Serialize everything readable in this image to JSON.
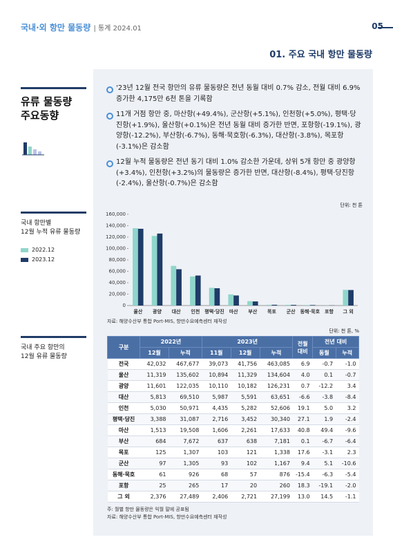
{
  "header": {
    "title": "국내·외 항만 물동량",
    "subtitle": "| 통계 2024.01",
    "page": "05"
  },
  "section_title": "01. 주요 국내 항만 물동량",
  "sidebar": {
    "topic": [
      "유류 물동량",
      "주요동향"
    ],
    "chart_label": [
      "국내 항만별",
      "12월 누적 유류 물동량"
    ],
    "table_label": [
      "국내 주요 항만의",
      "12월 유류 물동량"
    ]
  },
  "bullets": [
    "'23년 12월 전국 항만의 유류 물동량은 전년 동월 대비 0.7% 감소, 전월 대비 6.9% 증가한 4,175만 6천 톤을 기록함",
    "11개 거점 항만 중, 마산항(+49.4%), 군산항(+5.1%), 인천항(+5.0%), 평택·당진항(+1.9%), 울산항(+0.1%)은 전년 동월 대비 증가한 반면, 포항항(-19.1%), 광양항(-12.2%), 부산항(-6.7%), 동해·묵호항(-6.3%), 대산항(-3.8%), 목포항(-3.1%)은 감소함",
    "12월 누적 물동량은 전년 동기 대비 1.0% 감소한 가운데, 상위 5개 항만 중 광양항(+3.4%), 인천항(+3.2%)의 물동량은 증가한 반면, 대산항(-8.4%), 평택·당진항(-2.4%), 울산항(-0.7%)은 감소함"
  ],
  "chart_data": {
    "type": "bar",
    "unit": "단위: 천 톤",
    "categories": [
      "울산",
      "광양",
      "대산",
      "인천",
      "평택·당진",
      "마산",
      "부산",
      "목포",
      "군산",
      "동해·묵호",
      "포항",
      "그 외"
    ],
    "series": [
      {
        "name": "2022.12",
        "color": "#8fd6cb",
        "values": [
          135602,
          122035,
          69510,
          50971,
          31087,
          19508,
          7672,
          1307,
          1305,
          926,
          265,
          27489
        ]
      },
      {
        "name": "2023.12",
        "color": "#1f3c68",
        "values": [
          134604,
          126231,
          63651,
          52606,
          30340,
          17633,
          7181,
          1338,
          1167,
          876,
          260,
          27199
        ]
      }
    ],
    "ylim": [
      0,
      160000
    ],
    "yticks": [
      0,
      {
        "value": 20000,
        "label": "20,000"
      },
      {
        "value": 40000,
        "label": "40,000"
      },
      {
        "value": 60000,
        "label": "60,000"
      },
      {
        "value": 80000,
        "label": "80,000"
      },
      {
        "value": 100000,
        "label": "100,000"
      },
      {
        "value": 120000,
        "label": "120,000"
      },
      {
        "value": 140000,
        "label": "140,000"
      },
      {
        "value": 160000,
        "label": "160,000"
      }
    ],
    "source": "자료: 해양수산부 통합 Port-MIS, 항만수요예측센터 재작성"
  },
  "table": {
    "unit": "단위: 천 톤, %",
    "head": {
      "category": "구분",
      "y2022": "2022년",
      "y2023": "2023년",
      "mom": "전월 대비",
      "yoy": "전년 대비",
      "sub": [
        "12월",
        "누적",
        "11월",
        "12월",
        "누적",
        "동월",
        "누적"
      ]
    },
    "rows": [
      [
        "전국",
        "42,032",
        "467,677",
        "39,073",
        "41,756",
        "463,085",
        "6.9",
        "-0.7",
        "-1.0"
      ],
      [
        "울산",
        "11,319",
        "135,602",
        "10,894",
        "11,329",
        "134,604",
        "4.0",
        "0.1",
        "-0.7"
      ],
      [
        "광양",
        "11,601",
        "122,035",
        "10,110",
        "10,182",
        "126,231",
        "0.7",
        "-12.2",
        "3.4"
      ],
      [
        "대산",
        "5,813",
        "69,510",
        "5,987",
        "5,591",
        "63,651",
        "-6.6",
        "-3.8",
        "-8.4"
      ],
      [
        "인천",
        "5,030",
        "50,971",
        "4,435",
        "5,282",
        "52,606",
        "19.1",
        "5.0",
        "3.2"
      ],
      [
        "평택·당진",
        "3,388",
        "31,087",
        "2,716",
        "3,452",
        "30,340",
        "27.1",
        "1.9",
        "-2.4"
      ],
      [
        "마산",
        "1,513",
        "19,508",
        "1,606",
        "2,261",
        "17,633",
        "40.8",
        "49.4",
        "-9.6"
      ],
      [
        "부산",
        "684",
        "7,672",
        "637",
        "638",
        "7,181",
        "0.1",
        "-6.7",
        "-6.4"
      ],
      [
        "목포",
        "125",
        "1,307",
        "103",
        "121",
        "1,338",
        "17.6",
        "-3.1",
        "2.3"
      ],
      [
        "군산",
        "97",
        "1,305",
        "93",
        "102",
        "1,167",
        "9.4",
        "5.1",
        "-10.6"
      ],
      [
        "동해·묵호",
        "61",
        "926",
        "68",
        "57",
        "876",
        "-15.4",
        "-6.3",
        "-5.4"
      ],
      [
        "포항",
        "25",
        "265",
        "17",
        "20",
        "260",
        "18.3",
        "-19.1",
        "-2.0"
      ],
      [
        "그 외",
        "2,376",
        "27,489",
        "2,406",
        "2,721",
        "27,199",
        "13.0",
        "14.5",
        "-1.1"
      ]
    ],
    "notes": [
      "주: 월별 항만 물동량은 익월 말에 공표됨",
      "자료: 해양수산부 통합 Port-MIS, 항만수요예측센터 재작성"
    ]
  }
}
